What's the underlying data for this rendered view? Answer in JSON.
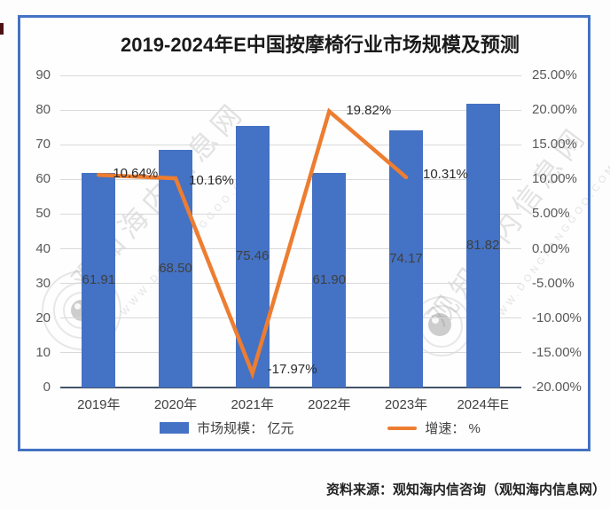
{
  "chart_data": {
    "type": "bar+line",
    "title": "2019-2024年E中国按摩椅行业市场规模及预测",
    "categories": [
      "2019年",
      "2020年",
      "2021年",
      "2022年",
      "2023年",
      "2024年E"
    ],
    "series": [
      {
        "name": "市场规模： 亿元",
        "type": "bar",
        "axis": "left",
        "unit": "亿元",
        "color": "#4472C4",
        "values": [
          61.91,
          68.5,
          75.46,
          61.9,
          74.17,
          81.82
        ],
        "labels": [
          "61.91",
          "68.50",
          "75.46",
          "61.90",
          "74.17",
          "81.82"
        ]
      },
      {
        "name": "增速： %",
        "type": "line",
        "axis": "right",
        "unit": "%",
        "color": "#ED7D31",
        "values": [
          10.64,
          10.16,
          -17.97,
          19.82,
          10.31,
          null
        ],
        "labels": [
          "10.64%",
          "10.16%",
          "-17.97%",
          "19.82%",
          "10.31%",
          ""
        ]
      }
    ],
    "left_axis": {
      "min": 0,
      "max": 90,
      "step": 10,
      "ticks": [
        "0",
        "10",
        "20",
        "30",
        "40",
        "50",
        "60",
        "70",
        "80",
        "90"
      ]
    },
    "right_axis": {
      "min": -20,
      "max": 25,
      "step": 5,
      "ticks": [
        "-20.00%",
        "-15.00%",
        "-10.00%",
        "-5.00%",
        "0.00%",
        "5.00%",
        "10.00%",
        "15.00%",
        "20.00%",
        "25.00%"
      ]
    },
    "grid": true,
    "legend_position": "bottom"
  },
  "legend": [
    {
      "label": "市场规模： 亿元",
      "swatch": "bar",
      "color": "#4472C4"
    },
    {
      "label": "增速： %",
      "swatch": "line",
      "color": "#ED7D31"
    }
  ],
  "watermark": {
    "text": "观知海内信息网",
    "url_text": "WWW.DONGFANGGOO.COM"
  },
  "source_note": "资料来源：观知海内信咨询（观知海内信息网）",
  "colors": {
    "bar": "#4472C4",
    "line": "#ED7D31",
    "border": "#4472C4",
    "gridline": "#D9D9D9",
    "axis_line": "#44546A",
    "tick_text": "#595959",
    "label_text": "#3F3F3F"
  }
}
